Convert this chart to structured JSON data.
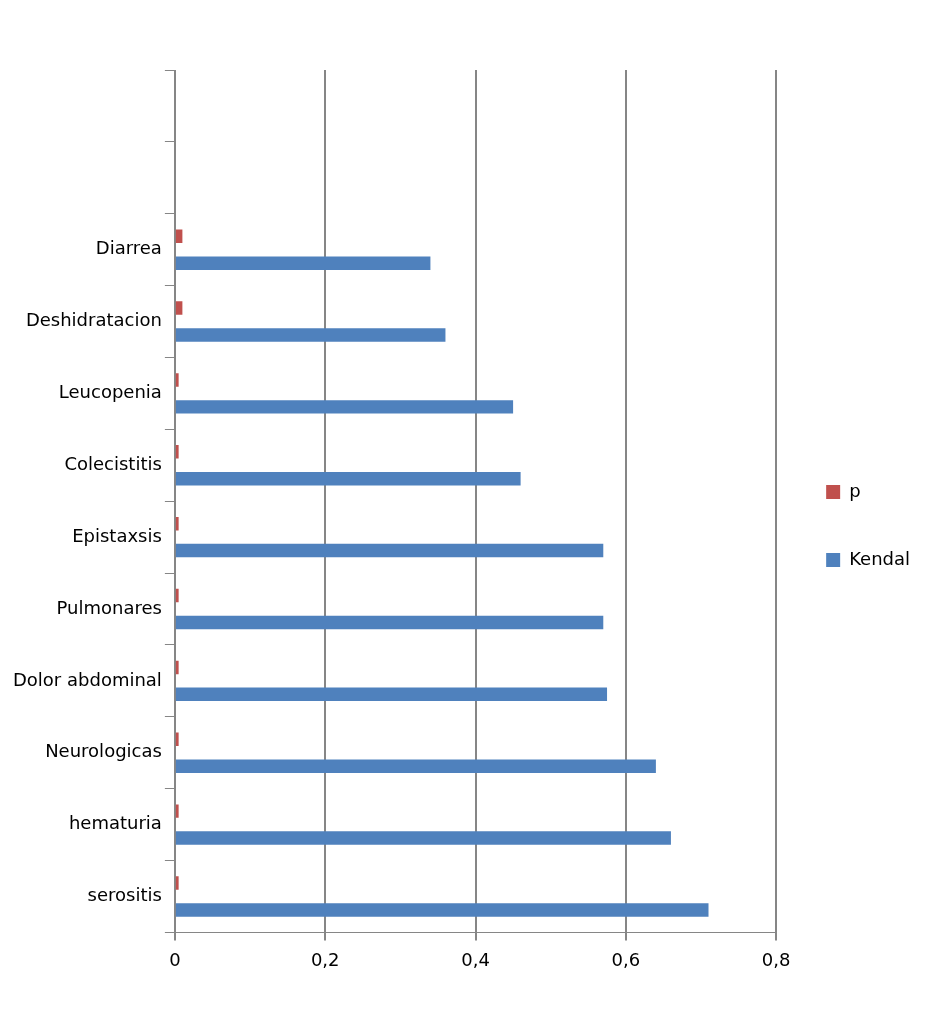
{
  "chart_data": {
    "type": "bar",
    "orientation": "horizontal",
    "categories": [
      null,
      null,
      "Diarrea",
      "Deshidratacion",
      "Leucopenia",
      "Colecistitis",
      "Epistaxsis",
      "Pulmonares",
      "Dolor abdominal",
      "Neurologicas",
      "hematuria",
      "serositis"
    ],
    "series": [
      {
        "name": "p",
        "color": "#c0504d",
        "values": [
          null,
          null,
          0.01,
          0.01,
          0.005,
          0.005,
          0.005,
          0.005,
          0.005,
          0.005,
          0.005,
          0.005
        ]
      },
      {
        "name": "Kendal",
        "color": "#4f81bd",
        "values": [
          null,
          null,
          0.34,
          0.36,
          0.45,
          0.46,
          0.57,
          0.57,
          0.575,
          0.64,
          0.66,
          0.71
        ]
      }
    ],
    "xlim": [
      0,
      0.8
    ],
    "xticks": [
      {
        "value": 0,
        "label": "0"
      },
      {
        "value": 0.2,
        "label": "0,2"
      },
      {
        "value": 0.4,
        "label": "0,4"
      },
      {
        "value": 0.6,
        "label": "0,6"
      },
      {
        "value": 0.8,
        "label": "0,8"
      }
    ],
    "grid": "x",
    "legend": "right"
  }
}
